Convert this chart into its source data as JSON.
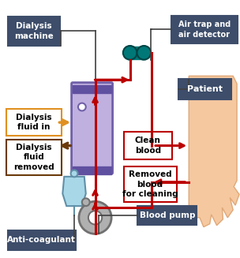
{
  "bg_color": "#ffffff",
  "label_box_color": "#3d4d6a",
  "label_text_color": "#ffffff",
  "dialysis_machine_label": "Dialysis\nmachine",
  "air_trap_label": "Air trap and\nair detector",
  "patient_label": "Patient",
  "anticoag_label": "Anti-coagulant",
  "blood_pump_label": "Blood pump",
  "fluid_in_label": "Dialysis\nfluid in",
  "fluid_removed_label": "Dialysis\nfluid\nremoved",
  "clean_blood_label": "Clean\nblood",
  "removed_blood_label": "Removed\nblood\nfor cleaning",
  "arrow_color": "#bb0000",
  "fluid_in_box_color": "#e09020",
  "fluid_removed_box_color": "#6b3a0a",
  "dialyzer_fill": "#c0b0e0",
  "dialyzer_border": "#7060a8",
  "dialyzer_cap": "#6050a0",
  "teal_color": "#007878",
  "teal_dark": "#004444",
  "iv_bag_color": "#a8d8e8",
  "iv_bag_border": "#6090a8",
  "pump_outer": "#b0b0b0",
  "pump_inner": "#d8d8d8",
  "pump_border": "#707070",
  "skin_color": "#f5c8a0",
  "skin_border": "#e0a878",
  "connector_color": "#404040",
  "lw": 2.2
}
